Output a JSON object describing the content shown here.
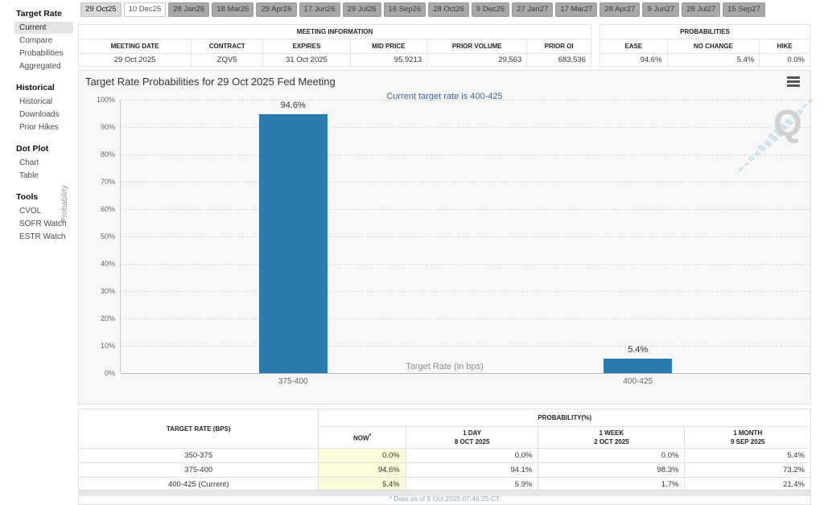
{
  "tabs": {
    "items": [
      {
        "label": "29 Oct25",
        "state": "selected"
      },
      {
        "label": "10 Dec25",
        "state": "open"
      },
      {
        "label": "28 Jan26",
        "state": "default"
      },
      {
        "label": "18 Mar26",
        "state": "default"
      },
      {
        "label": "29 Apr26",
        "state": "default"
      },
      {
        "label": "17 Jun26",
        "state": "default"
      },
      {
        "label": "29 Jul26",
        "state": "default"
      },
      {
        "label": "16 Sep26",
        "state": "default"
      },
      {
        "label": "28 Oct26",
        "state": "default"
      },
      {
        "label": "9 Dec26",
        "state": "default"
      },
      {
        "label": "27 Jan27",
        "state": "default"
      },
      {
        "label": "17 Mar27",
        "state": "default"
      },
      {
        "label": "28 Apr27",
        "state": "default"
      },
      {
        "label": "9 Jun27",
        "state": "default"
      },
      {
        "label": "28 Jul27",
        "state": "default"
      },
      {
        "label": "15 Sep27",
        "state": "default"
      }
    ]
  },
  "sidebar": {
    "sections": [
      {
        "title": "Target Rate",
        "items": [
          {
            "label": "Current",
            "active": true
          },
          {
            "label": "Compare",
            "active": false
          },
          {
            "label": "Probabilities",
            "active": false
          },
          {
            "label": "Aggregated",
            "active": false
          }
        ]
      },
      {
        "title": "Historical",
        "items": [
          {
            "label": "Historical",
            "active": false
          },
          {
            "label": "Downloads",
            "active": false
          },
          {
            "label": "Prior Hikes",
            "active": false
          }
        ]
      },
      {
        "title": "Dot Plot",
        "items": [
          {
            "label": "Chart",
            "active": false
          },
          {
            "label": "Table",
            "active": false
          }
        ]
      },
      {
        "title": "Tools",
        "items": [
          {
            "label": "CVOL",
            "active": false
          },
          {
            "label": "SOFR Watch",
            "active": false
          },
          {
            "label": "ESTR Watch",
            "active": false
          }
        ]
      }
    ]
  },
  "meeting_info": {
    "title": "MEETING INFORMATION",
    "columns": [
      "MEETING DATE",
      "CONTRACT",
      "EXPIRES",
      "MID PRICE",
      "PRIOR VOLUME",
      "PRIOR OI"
    ],
    "values": [
      "29 Oct 2025",
      "ZQV5",
      "31 Oct 2025",
      "95.9213",
      "29,563",
      "683,536"
    ],
    "aligns": [
      "center",
      "center",
      "center",
      "right",
      "right",
      "right"
    ]
  },
  "probabilities": {
    "title": "PROBABILITIES",
    "columns": [
      "EASE",
      "NO CHANGE",
      "HIKE"
    ],
    "values": [
      "94.6%",
      "5.4%",
      "0.0%"
    ],
    "aligns": [
      "right",
      "right",
      "right"
    ]
  },
  "chart_data": {
    "type": "bar",
    "title": "Target Rate Probabilities for 29 Oct 2025 Fed Meeting",
    "subtitle": "Current target rate is 400-425",
    "categories": [
      "375-400",
      "400-425"
    ],
    "values": [
      94.6,
      5.4
    ],
    "value_labels": [
      "94.6%",
      "5.4%"
    ],
    "xlabel": "Target Rate (in bps)",
    "ylabel": "Probability",
    "ylim": [
      0,
      100
    ],
    "ytick_step": 10,
    "ytick_suffix": "%",
    "grid": "dashed-horizontal",
    "legend": "none",
    "bar_color": "#2b7bb1",
    "watermark": "Q"
  },
  "bottom_table": {
    "col1_header": "TARGET RATE (BPS)",
    "group_header": "PROBABILITY(%)",
    "columns": [
      {
        "label": "NOW",
        "sup": "*",
        "sublabel": ""
      },
      {
        "label": "1 DAY",
        "sup": "",
        "sublabel": "8 OCT 2025"
      },
      {
        "label": "1 WEEK",
        "sup": "",
        "sublabel": "2 OCT 2025"
      },
      {
        "label": "1 MONTH",
        "sup": "",
        "sublabel": "9 SEP 2025"
      }
    ],
    "rows": [
      {
        "rate": "350-375",
        "now": "0.0%",
        "day": "0.0%",
        "week": "0.0%",
        "month": "5.4%"
      },
      {
        "rate": "375-400",
        "now": "94.6%",
        "day": "94.1%",
        "week": "98.3%",
        "month": "73.2%"
      },
      {
        "rate": "400-425 (Current)",
        "now": "5.4%",
        "day": "5.9%",
        "week": "1.7%",
        "month": "21.4%"
      }
    ],
    "footnote": "* Data as of 9 Oct 2025 07:46:25 CT"
  }
}
